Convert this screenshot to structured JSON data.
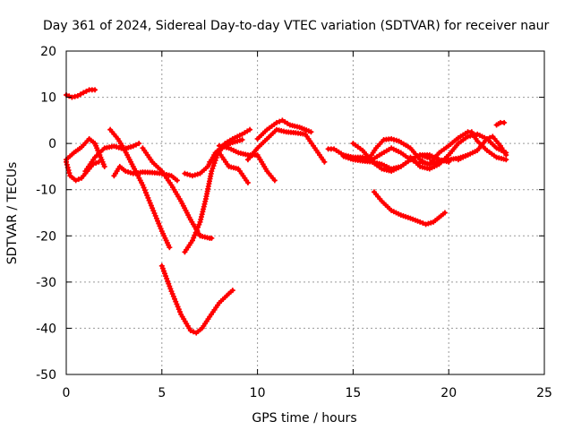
{
  "chart_data": {
    "type": "scatter",
    "title": "Day 361 of 2024, Sidereal Day-to-day VTEC variation (SDTVAR) for receiver naur",
    "xlabel": "GPS time / hours",
    "ylabel": "SDTVAR / TECUs",
    "xlim": [
      0,
      25
    ],
    "ylim": [
      -50,
      20
    ],
    "x_ticks": [
      0,
      5,
      10,
      15,
      20,
      25
    ],
    "y_ticks": [
      20,
      10,
      0,
      -10,
      -20,
      -30,
      -40,
      -50
    ],
    "x_tick_labels": [
      "0",
      "5",
      "10",
      "15",
      "20",
      "25"
    ],
    "y_tick_labels": [
      "20",
      "10",
      "0",
      "-10",
      "-20",
      "-30",
      "-40",
      "-50"
    ],
    "grid": true,
    "marker_color": "#ff0000",
    "series": [
      {
        "name": "s1",
        "points": [
          [
            0,
            10.5
          ],
          [
            0.3,
            10
          ],
          [
            0.6,
            10.3
          ],
          [
            0.9,
            11
          ],
          [
            1.2,
            11.6
          ],
          [
            1.5,
            11.6
          ]
        ]
      },
      {
        "name": "s2",
        "points": [
          [
            0,
            -4
          ],
          [
            0.2,
            -7
          ],
          [
            0.5,
            -8
          ],
          [
            0.8,
            -7.5
          ],
          [
            1.1,
            -6
          ],
          [
            1.4,
            -4.5
          ],
          [
            1.7,
            -4
          ]
        ]
      },
      {
        "name": "s3",
        "points": [
          [
            0,
            -3.5
          ],
          [
            0.4,
            -2
          ],
          [
            0.8,
            -0.8
          ],
          [
            1.2,
            1
          ],
          [
            1.5,
            0
          ],
          [
            1.8,
            -3
          ],
          [
            2.0,
            -5
          ]
        ]
      },
      {
        "name": "s4",
        "points": [
          [
            1,
            -6
          ],
          [
            1.5,
            -3
          ],
          [
            2.0,
            -1
          ],
          [
            2.5,
            -0.6
          ],
          [
            3.0,
            -1.2
          ],
          [
            3.5,
            -0.6
          ],
          [
            3.8,
            0
          ]
        ]
      },
      {
        "name": "s5",
        "points": [
          [
            2.5,
            -7
          ],
          [
            2.8,
            -5
          ],
          [
            3.1,
            -6
          ],
          [
            3.5,
            -6.5
          ],
          [
            4.0,
            -6.2
          ],
          [
            4.5,
            -6.3
          ],
          [
            5.0,
            -6.5
          ],
          [
            5.5,
            -7
          ],
          [
            5.8,
            -8
          ]
        ]
      },
      {
        "name": "s6",
        "points": [
          [
            2.3,
            3
          ],
          [
            2.7,
            1
          ],
          [
            3.0,
            -1
          ],
          [
            3.5,
            -5
          ],
          [
            4.0,
            -9
          ],
          [
            4.5,
            -14
          ],
          [
            5.0,
            -19
          ],
          [
            5.4,
            -22.5
          ]
        ]
      },
      {
        "name": "s7",
        "points": [
          [
            4.0,
            -1
          ],
          [
            4.5,
            -4
          ],
          [
            5.0,
            -6
          ],
          [
            5.5,
            -9
          ],
          [
            6.0,
            -12.5
          ],
          [
            6.5,
            -16.5
          ],
          [
            7.0,
            -20
          ],
          [
            7.5,
            -20.5
          ],
          [
            7.6,
            -20.5
          ]
        ]
      },
      {
        "name": "s8",
        "points": [
          [
            5.0,
            -26.5
          ],
          [
            5.5,
            -32
          ],
          [
            6.0,
            -37
          ],
          [
            6.5,
            -40.5
          ],
          [
            6.8,
            -41
          ],
          [
            7.1,
            -40
          ],
          [
            7.5,
            -37.5
          ],
          [
            8.0,
            -34.5
          ],
          [
            8.5,
            -32.5
          ],
          [
            8.7,
            -31.8
          ]
        ]
      },
      {
        "name": "s9",
        "points": [
          [
            6.2,
            -23.5
          ],
          [
            6.6,
            -21
          ],
          [
            7.0,
            -17
          ],
          [
            7.3,
            -12
          ],
          [
            7.6,
            -6
          ],
          [
            7.9,
            -2.5
          ],
          [
            8.3,
            0
          ],
          [
            8.7,
            1
          ],
          [
            9.2,
            2
          ],
          [
            9.6,
            3
          ]
        ]
      },
      {
        "name": "s10",
        "points": [
          [
            6.2,
            -6.5
          ],
          [
            6.6,
            -7
          ],
          [
            7.0,
            -6.5
          ],
          [
            7.4,
            -5
          ],
          [
            7.8,
            -2
          ],
          [
            8.2,
            -0.5
          ],
          [
            8.7,
            0.2
          ],
          [
            9.2,
            0.8
          ]
        ]
      },
      {
        "name": "s11",
        "points": [
          [
            7.5,
            -4
          ],
          [
            8.0,
            -2
          ],
          [
            8.5,
            -5
          ],
          [
            9.0,
            -5.5
          ],
          [
            9.5,
            -8.5
          ]
        ]
      },
      {
        "name": "s12",
        "points": [
          [
            8.0,
            -0.5
          ],
          [
            8.5,
            -1
          ],
          [
            9.0,
            -2
          ],
          [
            9.5,
            -2.5
          ],
          [
            10.0,
            -2.5
          ],
          [
            10.5,
            -6
          ],
          [
            10.9,
            -8
          ]
        ]
      },
      {
        "name": "s13",
        "points": [
          [
            9.5,
            -3.5
          ],
          [
            10.0,
            -1
          ],
          [
            10.5,
            1
          ],
          [
            11.0,
            3
          ],
          [
            11.5,
            2.5
          ],
          [
            12.0,
            2.3
          ],
          [
            12.5,
            2
          ],
          [
            13.0,
            -1
          ],
          [
            13.5,
            -4
          ]
        ]
      },
      {
        "name": "s14",
        "points": [
          [
            10.0,
            1
          ],
          [
            10.5,
            3
          ],
          [
            11.0,
            4.5
          ],
          [
            11.3,
            5
          ],
          [
            11.7,
            4
          ],
          [
            12.2,
            3.5
          ],
          [
            12.8,
            2.5
          ]
        ]
      },
      {
        "name": "s15",
        "points": [
          [
            13.7,
            -1.2
          ],
          [
            14.0,
            -1.2
          ],
          [
            14.5,
            -2.5
          ],
          [
            15.0,
            -3
          ],
          [
            15.5,
            -3
          ],
          [
            16.0,
            -3.5
          ],
          [
            16.5,
            -2.2
          ],
          [
            17.0,
            -1
          ],
          [
            17.5,
            -2
          ],
          [
            18.0,
            -3.5
          ],
          [
            18.3,
            -4
          ]
        ]
      },
      {
        "name": "s16",
        "points": [
          [
            14.5,
            -2.8
          ],
          [
            15.0,
            -3.5
          ],
          [
            15.5,
            -3.8
          ],
          [
            16.0,
            -4
          ],
          [
            16.5,
            -4.5
          ],
          [
            17.0,
            -5.5
          ],
          [
            17.5,
            -5
          ],
          [
            18.0,
            -3.5
          ],
          [
            18.5,
            -2.5
          ],
          [
            19.0,
            -3.2
          ]
        ]
      },
      {
        "name": "s17",
        "points": [
          [
            15.0,
            0
          ],
          [
            15.5,
            -1.5
          ],
          [
            16.0,
            -4
          ],
          [
            16.5,
            -5.5
          ],
          [
            17.0,
            -6
          ],
          [
            17.5,
            -5
          ],
          [
            18.0,
            -3.5
          ],
          [
            18.5,
            -2.5
          ],
          [
            19.0,
            -2.5
          ],
          [
            19.5,
            -3.5
          ],
          [
            20.0,
            -4
          ]
        ]
      },
      {
        "name": "s18",
        "points": [
          [
            15.8,
            -3.5
          ],
          [
            16.2,
            -1
          ],
          [
            16.6,
            0.8
          ],
          [
            17.0,
            1
          ],
          [
            17.4,
            0.5
          ],
          [
            18.0,
            -1
          ],
          [
            18.5,
            -3.5
          ],
          [
            18.9,
            -4.5
          ],
          [
            19.5,
            -4
          ],
          [
            20.0,
            -3.5
          ],
          [
            20.5,
            -3.2
          ],
          [
            21.0,
            -2.5
          ]
        ]
      },
      {
        "name": "s19",
        "points": [
          [
            16.1,
            -10.5
          ],
          [
            16.5,
            -12.5
          ],
          [
            17.0,
            -14.5
          ],
          [
            17.5,
            -15.5
          ],
          [
            18.0,
            -16.2
          ],
          [
            18.5,
            -17
          ],
          [
            18.8,
            -17.5
          ],
          [
            19.2,
            -17
          ],
          [
            19.5,
            -16
          ],
          [
            19.8,
            -15
          ]
        ]
      },
      {
        "name": "s20",
        "points": [
          [
            18.0,
            -3
          ],
          [
            18.5,
            -5
          ],
          [
            19.0,
            -5.5
          ],
          [
            19.5,
            -4.5
          ],
          [
            20.0,
            -2.5
          ],
          [
            20.5,
            0
          ],
          [
            21.0,
            1.5
          ],
          [
            21.5,
            2
          ],
          [
            22.0,
            1
          ],
          [
            22.5,
            -1
          ],
          [
            23.0,
            -2
          ]
        ]
      },
      {
        "name": "s21",
        "points": [
          [
            18.5,
            -4
          ],
          [
            19.0,
            -4.5
          ],
          [
            19.5,
            -2
          ],
          [
            20.0,
            -0.5
          ],
          [
            20.5,
            1.2
          ],
          [
            21.0,
            2.5
          ],
          [
            21.2,
            2.5
          ],
          [
            21.5,
            0.5
          ],
          [
            22.0,
            -1.5
          ],
          [
            22.5,
            -3
          ],
          [
            23.0,
            -3.5
          ]
        ]
      },
      {
        "name": "s22",
        "points": [
          [
            20.5,
            -3.5
          ],
          [
            21.0,
            -2.5
          ],
          [
            21.5,
            -1.5
          ],
          [
            22.0,
            1
          ],
          [
            22.3,
            1.5
          ],
          [
            22.7,
            -0.5
          ],
          [
            23.0,
            -2.5
          ]
        ]
      },
      {
        "name": "s23",
        "points": [
          [
            22.5,
            4
          ],
          [
            22.7,
            4.5
          ],
          [
            22.9,
            4.5
          ]
        ]
      }
    ]
  }
}
